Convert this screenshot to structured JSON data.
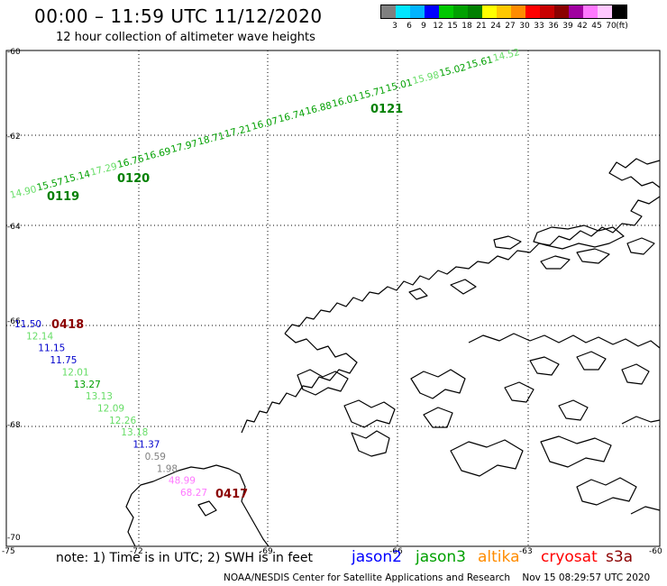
{
  "header": {
    "title": "00:00 – 11:59 UTC 11/12/2020",
    "subtitle": "12 hour collection of altimeter wave heights"
  },
  "scale": {
    "colors": [
      "#808080",
      "#00e6ff",
      "#00b4ff",
      "#0000ff",
      "#00c800",
      "#00a000",
      "#008000",
      "#ffff00",
      "#ffc800",
      "#ff8c00",
      "#ff0000",
      "#c80000",
      "#8b0000",
      "#a000a0",
      "#ff78ff",
      "#ffc8ff",
      "#000000"
    ],
    "labels": [
      "3",
      "6",
      "9",
      "12",
      "15",
      "18",
      "21",
      "24",
      "27",
      "30",
      "33",
      "36",
      "39",
      "42",
      "45",
      "70",
      "(ft)"
    ]
  },
  "axes": {
    "lat_labels": [
      "-60",
      "-62",
      "-64",
      "-66",
      "-68",
      "-70"
    ],
    "lon_labels": [
      "-75",
      "-72",
      "-69",
      "-66",
      "-63",
      "-60"
    ]
  },
  "passes": [
    {
      "id": "p0119",
      "time": "0119",
      "color": "#008000"
    },
    {
      "id": "p0120",
      "time": "0120",
      "color": "#008000"
    },
    {
      "id": "p0121",
      "time": "0121",
      "color": "#008000"
    },
    {
      "id": "p0418",
      "time": "0418",
      "color": "#8b0000"
    },
    {
      "id": "p0417",
      "time": "0417",
      "color": "#8b0000"
    }
  ],
  "track_top": [
    {
      "v": "14.90",
      "c": "#66dd66"
    },
    {
      "v": "15.57",
      "c": "#00a000"
    },
    {
      "v": "15.14",
      "c": "#00a000"
    },
    {
      "v": "17.29",
      "c": "#66dd66"
    },
    {
      "v": "16.76",
      "c": "#00a000"
    },
    {
      "v": "16.69",
      "c": "#00a000"
    },
    {
      "v": "17.97",
      "c": "#00a000"
    },
    {
      "v": "18.71",
      "c": "#00a000"
    },
    {
      "v": "17.21",
      "c": "#00a000"
    },
    {
      "v": "16.07",
      "c": "#00a000"
    },
    {
      "v": "16.74",
      "c": "#00a000"
    },
    {
      "v": "16.88",
      "c": "#00a000"
    },
    {
      "v": "16.01",
      "c": "#00a000"
    },
    {
      "v": "15.71",
      "c": "#00a000"
    },
    {
      "v": "15.01",
      "c": "#00a000"
    },
    {
      "v": "15.98",
      "c": "#66dd66"
    },
    {
      "v": "15.02",
      "c": "#00a000"
    },
    {
      "v": "15.61",
      "c": "#00a000"
    },
    {
      "v": "14.52",
      "c": "#66dd66"
    }
  ],
  "track_west": [
    {
      "v": "11.50",
      "c": "#0000cc"
    },
    {
      "v": "12.14",
      "c": "#66dd66"
    },
    {
      "v": "11.15",
      "c": "#0000cc"
    },
    {
      "v": "11.75",
      "c": "#0000cc"
    },
    {
      "v": "12.01",
      "c": "#66dd66"
    },
    {
      "v": "13.27",
      "c": "#00a000"
    },
    {
      "v": "13.13",
      "c": "#66dd66"
    },
    {
      "v": "12.09",
      "c": "#66dd66"
    },
    {
      "v": "12.26",
      "c": "#66dd66"
    },
    {
      "v": "13.18",
      "c": "#66dd66"
    },
    {
      "v": "11.37",
      "c": "#0000cc"
    },
    {
      "v": "0.59",
      "c": "#808080"
    },
    {
      "v": "1.98",
      "c": "#808080"
    },
    {
      "v": "48.99",
      "c": "#ff78ff"
    },
    {
      "v": "68.27",
      "c": "#ff78ff"
    }
  ],
  "note": "note:  1) Time is in UTC;  2) SWH is in feet",
  "legend": [
    {
      "name": "jason2",
      "color": "#0000ff"
    },
    {
      "name": "jason3",
      "color": "#00a000"
    },
    {
      "name": "altika",
      "color": "#ff8c00"
    },
    {
      "name": "cryosat",
      "color": "#ff0000"
    },
    {
      "name": "s3a",
      "color": "#8b0000"
    }
  ],
  "footer": {
    "credit": "NOAA/NESDIS Center for Satellite Applications and Research",
    "timestamp": "Nov 15 08:29:57 UTC 2020"
  }
}
